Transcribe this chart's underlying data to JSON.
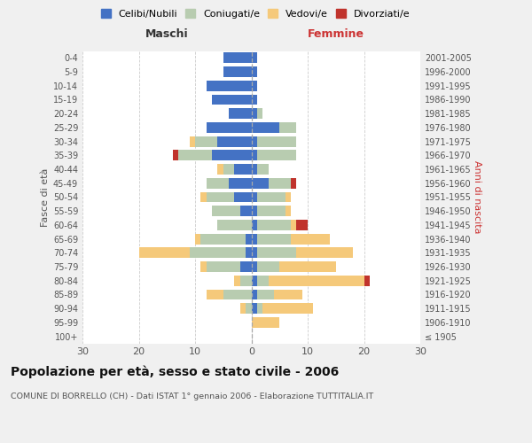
{
  "age_groups": [
    "100+",
    "95-99",
    "90-94",
    "85-89",
    "80-84",
    "75-79",
    "70-74",
    "65-69",
    "60-64",
    "55-59",
    "50-54",
    "45-49",
    "40-44",
    "35-39",
    "30-34",
    "25-29",
    "20-24",
    "15-19",
    "10-14",
    "5-9",
    "0-4"
  ],
  "birth_years": [
    "≤ 1905",
    "1906-1910",
    "1911-1915",
    "1916-1920",
    "1921-1925",
    "1926-1930",
    "1931-1935",
    "1936-1940",
    "1941-1945",
    "1946-1950",
    "1951-1955",
    "1956-1960",
    "1961-1965",
    "1966-1970",
    "1971-1975",
    "1976-1980",
    "1981-1985",
    "1986-1990",
    "1991-1995",
    "1996-2000",
    "2001-2005"
  ],
  "males": {
    "celibi": [
      0,
      0,
      0,
      0,
      0,
      2,
      1,
      1,
      0,
      2,
      3,
      4,
      3,
      7,
      6,
      8,
      4,
      7,
      8,
      5,
      5
    ],
    "coniugati": [
      0,
      0,
      1,
      5,
      2,
      6,
      10,
      8,
      6,
      5,
      5,
      4,
      2,
      6,
      4,
      0,
      0,
      0,
      0,
      0,
      0
    ],
    "vedovi": [
      0,
      0,
      1,
      3,
      1,
      1,
      9,
      1,
      0,
      0,
      1,
      0,
      1,
      0,
      1,
      0,
      0,
      0,
      0,
      0,
      0
    ],
    "divorziati": [
      0,
      0,
      0,
      0,
      0,
      0,
      0,
      0,
      0,
      0,
      0,
      0,
      0,
      1,
      0,
      0,
      0,
      0,
      0,
      0,
      0
    ]
  },
  "females": {
    "nubili": [
      0,
      0,
      1,
      1,
      1,
      1,
      1,
      1,
      1,
      1,
      1,
      3,
      1,
      1,
      1,
      5,
      1,
      1,
      1,
      1,
      1
    ],
    "coniugate": [
      0,
      0,
      1,
      3,
      2,
      4,
      7,
      6,
      6,
      5,
      5,
      4,
      2,
      7,
      7,
      3,
      1,
      0,
      0,
      0,
      0
    ],
    "vedove": [
      0,
      5,
      9,
      5,
      17,
      10,
      10,
      7,
      1,
      1,
      1,
      0,
      0,
      0,
      0,
      0,
      0,
      0,
      0,
      0,
      0
    ],
    "divorziate": [
      0,
      0,
      0,
      0,
      1,
      0,
      0,
      0,
      2,
      0,
      0,
      1,
      0,
      0,
      0,
      0,
      0,
      0,
      0,
      0,
      0
    ]
  },
  "colors": {
    "celibi_nubili": "#4472C4",
    "coniugati": "#B8CCB0",
    "vedovi": "#F5C97A",
    "divorziati": "#C0332C"
  },
  "xlim": 30,
  "title": "Popolazione per età, sesso e stato civile - 2006",
  "subtitle": "COMUNE DI BORRELLO (CH) - Dati ISTAT 1° gennaio 2006 - Elaborazione TUTTITALIA.IT",
  "ylabel_left": "Fasce di età",
  "ylabel_right": "Anni di nascita",
  "xlabel_males": "Maschi",
  "xlabel_females": "Femmine",
  "bg_color": "#f0f0f0",
  "plot_bg": "#ffffff"
}
